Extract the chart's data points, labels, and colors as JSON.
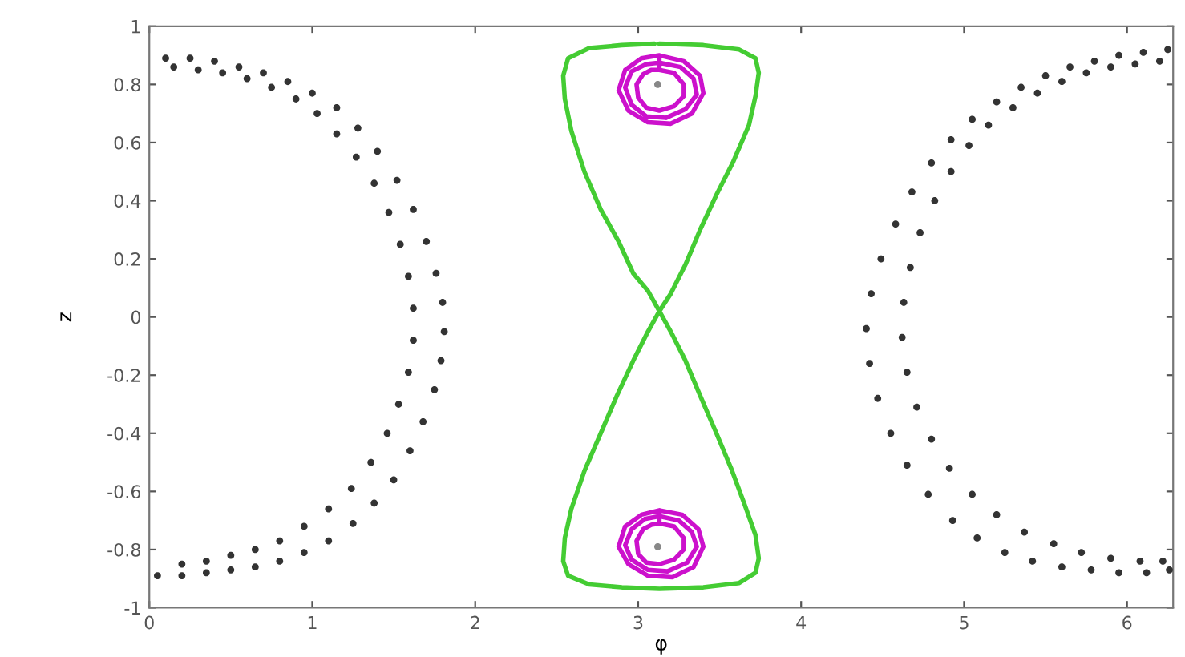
{
  "chart_data": {
    "type": "scatter",
    "xlabel": "φ",
    "ylabel": "z",
    "xlim": [
      0,
      6.283
    ],
    "ylim": [
      -1,
      1
    ],
    "xticks": [
      0,
      1,
      2,
      3,
      4,
      5,
      6
    ],
    "yticks": [
      -1,
      -0.8,
      -0.6,
      -0.4,
      -0.2,
      0,
      0.2,
      0.4,
      0.6,
      0.8,
      1
    ],
    "grid": false,
    "legend": false,
    "series": [
      {
        "marker": "circle",
        "color": "#333333",
        "x": [
          0.1,
          0.25,
          0.4,
          0.55,
          0.7,
          0.85,
          1.0,
          1.15,
          1.28,
          1.4,
          1.52,
          1.62,
          1.7,
          1.76,
          1.8,
          1.81,
          1.79,
          1.75,
          1.68,
          1.6,
          1.5,
          1.38,
          1.25,
          1.1,
          0.95,
          0.8,
          0.65,
          0.5,
          0.35,
          0.2,
          0.05,
          0.15,
          0.3,
          0.45,
          0.6,
          0.75,
          0.9,
          1.03,
          1.15,
          1.27,
          1.38,
          1.47,
          1.54,
          1.59,
          1.62,
          1.62,
          1.59,
          1.53,
          1.46,
          1.36,
          1.24,
          1.1,
          0.95,
          0.8,
          0.65,
          0.5,
          0.35,
          0.2,
          6.25,
          6.1,
          5.95,
          5.8,
          5.65,
          5.5,
          5.35,
          5.2,
          5.05,
          4.92,
          4.8,
          4.68,
          4.58,
          4.49,
          4.43,
          4.4,
          4.42,
          4.47,
          4.55,
          4.65,
          4.78,
          4.93,
          5.08,
          5.25,
          5.42,
          5.6,
          5.78,
          5.95,
          6.12,
          6.26,
          6.2,
          6.05,
          5.9,
          5.75,
          5.6,
          5.45,
          5.3,
          5.15,
          5.03,
          4.92,
          4.82,
          4.73,
          4.67,
          4.63,
          4.62,
          4.65,
          4.71,
          4.8,
          4.91,
          5.05,
          5.2,
          5.37,
          5.55,
          5.72,
          5.9,
          6.08,
          6.22
        ],
        "values": [
          0.89,
          0.89,
          0.88,
          0.86,
          0.84,
          0.81,
          0.77,
          0.72,
          0.65,
          0.57,
          0.47,
          0.37,
          0.26,
          0.15,
          0.05,
          -0.05,
          -0.15,
          -0.25,
          -0.36,
          -0.46,
          -0.56,
          -0.64,
          -0.71,
          -0.77,
          -0.81,
          -0.84,
          -0.86,
          -0.87,
          -0.88,
          -0.89,
          -0.89,
          0.86,
          0.85,
          0.84,
          0.82,
          0.79,
          0.75,
          0.7,
          0.63,
          0.55,
          0.46,
          0.36,
          0.25,
          0.14,
          0.03,
          -0.08,
          -0.19,
          -0.3,
          -0.4,
          -0.5,
          -0.59,
          -0.66,
          -0.72,
          -0.77,
          -0.8,
          -0.82,
          -0.84,
          -0.85,
          0.92,
          0.91,
          0.9,
          0.88,
          0.86,
          0.83,
          0.79,
          0.74,
          0.68,
          0.61,
          0.53,
          0.43,
          0.32,
          0.2,
          0.08,
          -0.04,
          -0.16,
          -0.28,
          -0.4,
          -0.51,
          -0.61,
          -0.7,
          -0.76,
          -0.81,
          -0.84,
          -0.86,
          -0.87,
          -0.88,
          -0.88,
          -0.87,
          0.88,
          0.87,
          0.86,
          0.84,
          0.81,
          0.77,
          0.72,
          0.66,
          0.59,
          0.5,
          0.4,
          0.29,
          0.17,
          0.05,
          -0.07,
          -0.19,
          -0.31,
          -0.42,
          -0.52,
          -0.61,
          -0.68,
          -0.74,
          -0.78,
          -0.81,
          -0.83,
          -0.84,
          -0.84
        ]
      },
      {
        "type": "line",
        "color": "#44cc33",
        "x": [
          3.13,
          3.4,
          3.62,
          3.72,
          3.74,
          3.72,
          3.68,
          3.58,
          3.48,
          3.38,
          3.29,
          3.2,
          3.13,
          3.06,
          2.97,
          2.87,
          2.77,
          2.67,
          2.59,
          2.55,
          2.54,
          2.57,
          2.7,
          2.9,
          3.13,
          3.4,
          3.62,
          3.72,
          3.74,
          3.72,
          3.65,
          3.57,
          3.48,
          3.38,
          3.29,
          3.2,
          3.13,
          3.06,
          2.97,
          2.88,
          2.77,
          2.67,
          2.59,
          2.55,
          2.54,
          2.57,
          2.7,
          2.9,
          3.1
        ],
        "values": [
          0.94,
          0.935,
          0.92,
          0.89,
          0.84,
          0.76,
          0.66,
          0.53,
          0.42,
          0.3,
          0.18,
          0.08,
          0.02,
          -0.05,
          -0.15,
          -0.27,
          -0.4,
          -0.53,
          -0.66,
          -0.76,
          -0.84,
          -0.89,
          -0.92,
          -0.93,
          -0.935,
          -0.93,
          -0.915,
          -0.88,
          -0.83,
          -0.75,
          -0.64,
          -0.52,
          -0.4,
          -0.27,
          -0.15,
          -0.05,
          0.02,
          0.09,
          0.15,
          0.26,
          0.37,
          0.5,
          0.64,
          0.75,
          0.83,
          0.89,
          0.925,
          0.935,
          0.94
        ]
      },
      {
        "type": "line",
        "color": "#cc11cc",
        "x": [
          3.13,
          3.28,
          3.38,
          3.4,
          3.33,
          3.2,
          3.06,
          2.94,
          2.88,
          2.92,
          3.02,
          3.13,
          3.13,
          3.26,
          3.34,
          3.36,
          3.29,
          3.17,
          3.05,
          2.96,
          2.92,
          2.96,
          3.05,
          3.13,
          3.13,
          3.22,
          3.28,
          3.28,
          3.22,
          3.13,
          3.05,
          3.0,
          2.99,
          3.03,
          3.08,
          3.13
        ],
        "values": [
          0.9,
          0.88,
          0.83,
          0.77,
          0.7,
          0.665,
          0.67,
          0.71,
          0.78,
          0.85,
          0.89,
          0.9,
          0.875,
          0.86,
          0.82,
          0.765,
          0.715,
          0.685,
          0.69,
          0.73,
          0.79,
          0.845,
          0.87,
          0.875,
          0.85,
          0.84,
          0.8,
          0.76,
          0.725,
          0.71,
          0.72,
          0.755,
          0.8,
          0.835,
          0.85,
          0.85
        ]
      },
      {
        "type": "line",
        "color": "#cc11cc",
        "x": [
          3.13,
          3.27,
          3.37,
          3.4,
          3.34,
          3.21,
          3.06,
          2.94,
          2.88,
          2.92,
          3.02,
          3.13,
          3.13,
          3.25,
          3.33,
          3.36,
          3.3,
          3.18,
          3.06,
          2.96,
          2.92,
          2.96,
          3.04,
          3.13,
          3.13,
          3.22,
          3.28,
          3.28,
          3.22,
          3.13,
          3.05,
          3.0,
          2.99,
          3.03,
          3.08,
          3.13
        ],
        "values": [
          -0.665,
          -0.68,
          -0.73,
          -0.79,
          -0.86,
          -0.895,
          -0.89,
          -0.85,
          -0.79,
          -0.72,
          -0.68,
          -0.665,
          -0.685,
          -0.7,
          -0.74,
          -0.79,
          -0.845,
          -0.875,
          -0.87,
          -0.835,
          -0.785,
          -0.73,
          -0.695,
          -0.685,
          -0.71,
          -0.72,
          -0.76,
          -0.8,
          -0.835,
          -0.85,
          -0.845,
          -0.815,
          -0.77,
          -0.73,
          -0.715,
          -0.71
        ]
      },
      {
        "marker": "circle",
        "color": "#888888",
        "x": [
          3.12,
          3.12
        ],
        "values": [
          0.8,
          -0.79
        ]
      }
    ]
  }
}
